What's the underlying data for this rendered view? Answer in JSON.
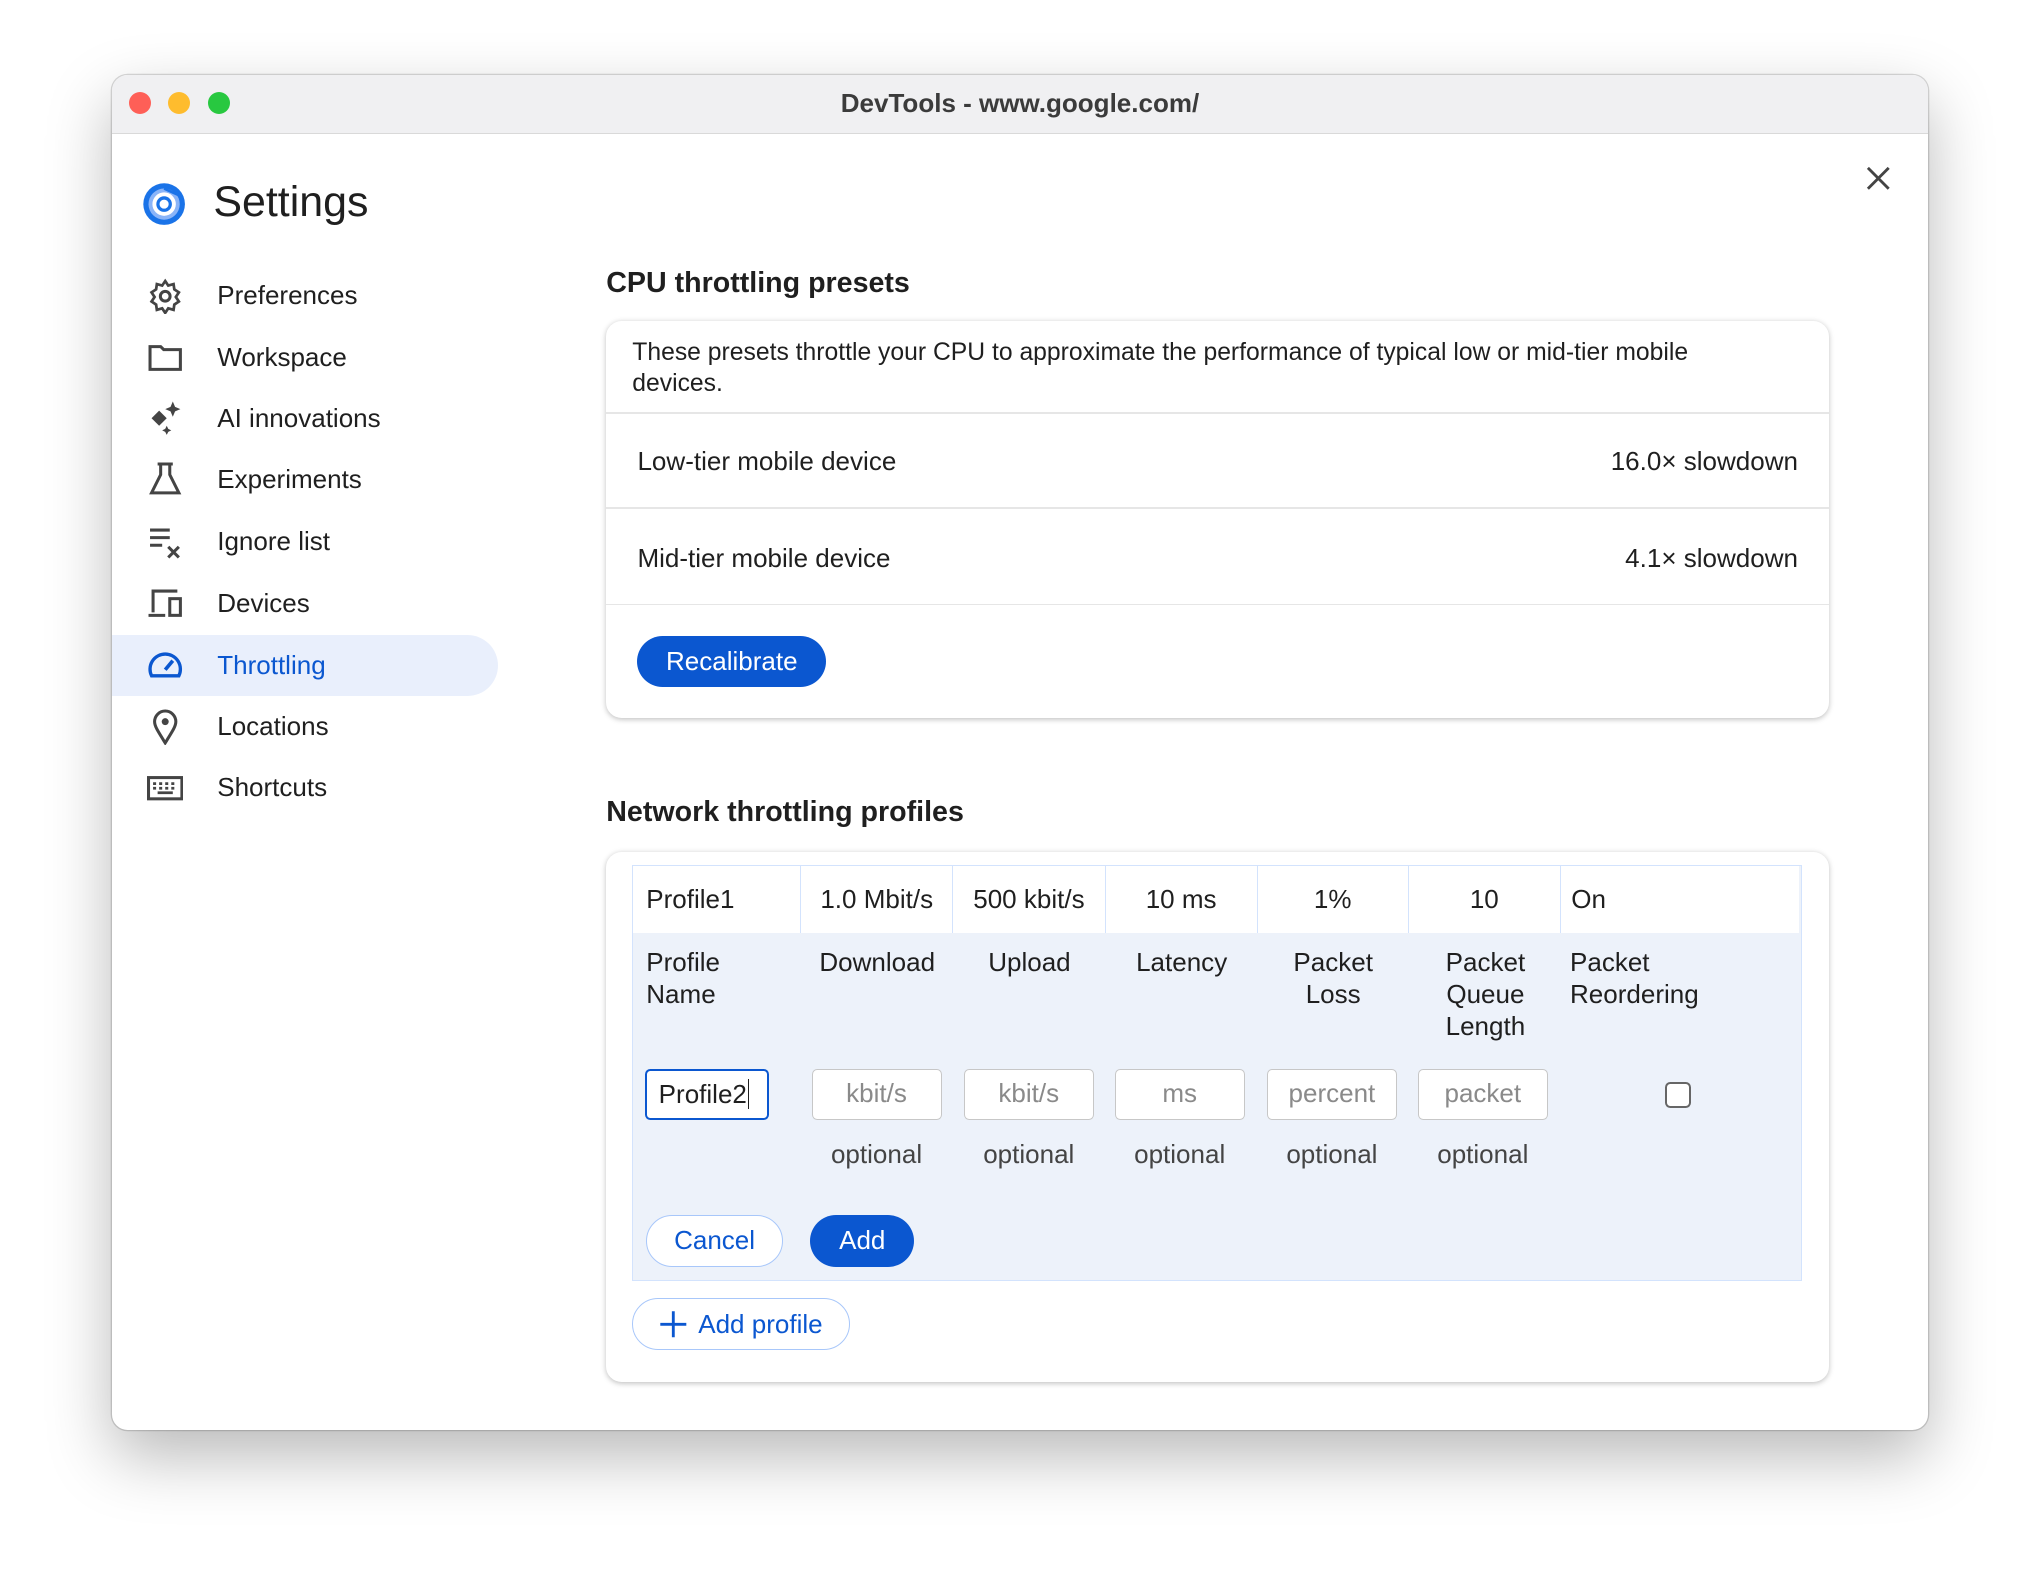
{
  "window": {
    "title": "DevTools - www.google.com/",
    "traffic_lights": {
      "close": "#fe5f57",
      "minimize": "#febc2e",
      "zoom": "#28c840"
    }
  },
  "settings": {
    "title": "Settings",
    "accent": "#0b57d0"
  },
  "sidebar": {
    "items": [
      {
        "label": "Preferences",
        "icon": "gear-icon"
      },
      {
        "label": "Workspace",
        "icon": "folder-icon"
      },
      {
        "label": "AI innovations",
        "icon": "sparkle-icon"
      },
      {
        "label": "Experiments",
        "icon": "flask-icon"
      },
      {
        "label": "Ignore list",
        "icon": "ignore-list-icon"
      },
      {
        "label": "Devices",
        "icon": "devices-icon"
      },
      {
        "label": "Throttling",
        "icon": "speedometer-icon",
        "active": true
      },
      {
        "label": "Locations",
        "icon": "location-pin-icon"
      },
      {
        "label": "Shortcuts",
        "icon": "keyboard-icon"
      }
    ]
  },
  "cpu": {
    "heading": "CPU throttling presets",
    "description": "These presets throttle your CPU to approximate the performance of typical low or mid-tier mobile devices.",
    "presets": [
      {
        "name": "Low-tier mobile device",
        "value": "16.0× slowdown"
      },
      {
        "name": "Mid-tier mobile device",
        "value": "4.1× slowdown"
      }
    ],
    "recalibrate_label": "Recalibrate"
  },
  "network": {
    "heading": "Network throttling profiles",
    "profiles": [
      {
        "name": "Profile1",
        "download": "1.0 Mbit/s",
        "upload": "500 kbit/s",
        "latency": "10 ms",
        "packet_loss": "1%",
        "queue_length": "10",
        "reordering": "On"
      }
    ],
    "editor": {
      "headers": {
        "name": "Profile Name",
        "download": "Download",
        "upload": "Upload",
        "latency": "Latency",
        "packet_loss": "Packet Loss",
        "queue_length": "Packet Queue Length",
        "reordering": "Packet Reordering"
      },
      "name_value": "Profile2",
      "placeholders": {
        "download": "kbit/s",
        "upload": "kbit/s",
        "latency": "ms",
        "packet_loss": "percent",
        "queue_length": "packet"
      },
      "optional_label": "optional",
      "reordering_checked": false,
      "cancel_label": "Cancel",
      "add_label": "Add"
    },
    "add_profile_label": "Add profile"
  }
}
